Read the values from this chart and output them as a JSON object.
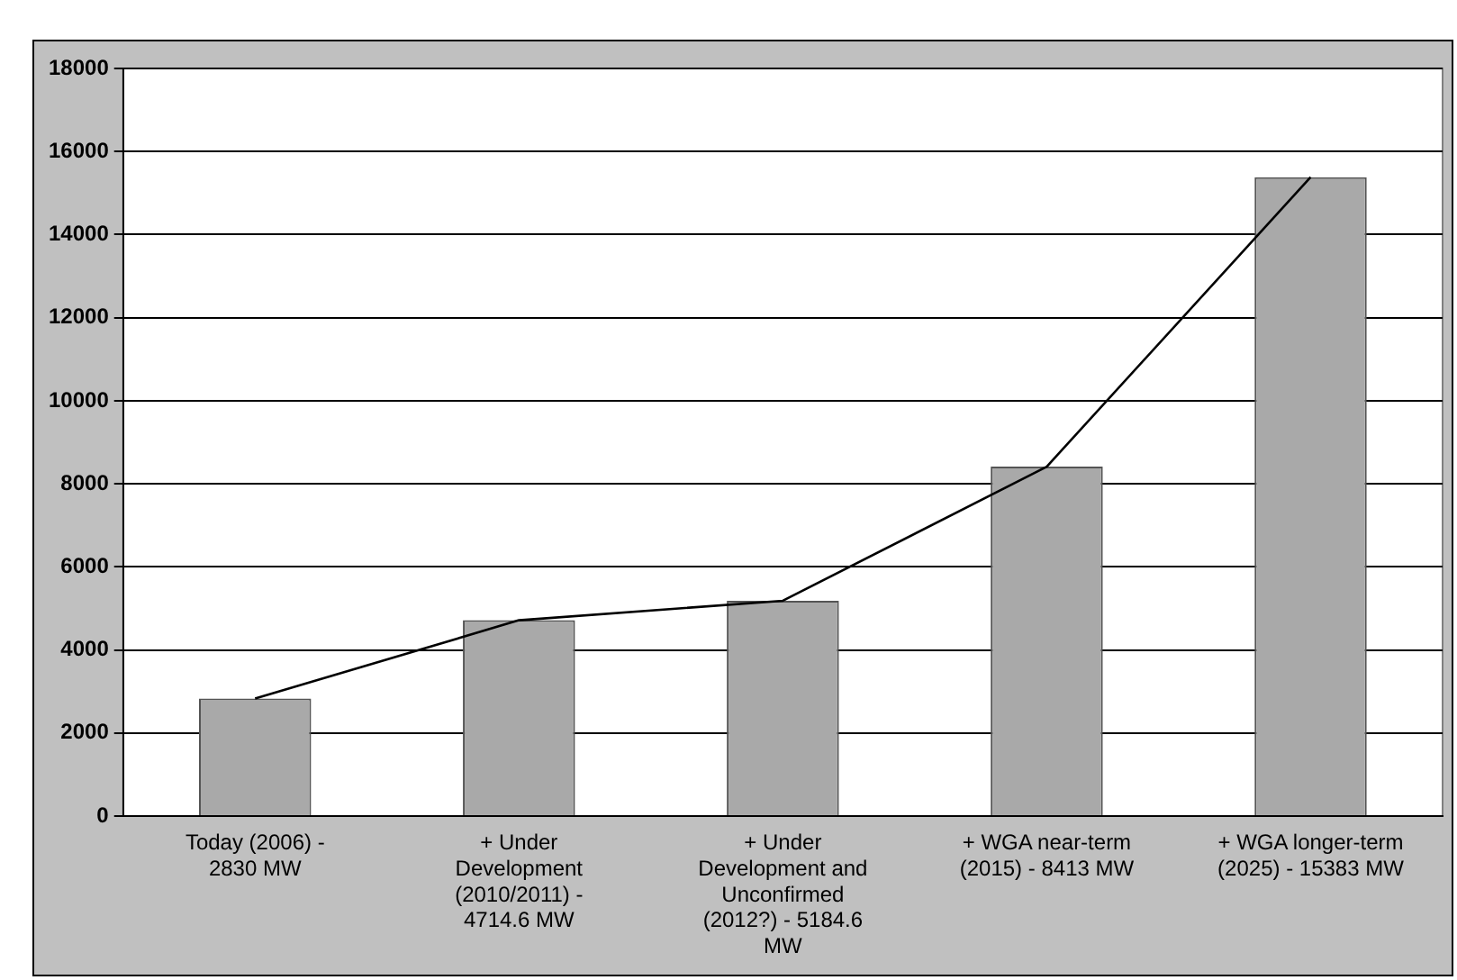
{
  "chart_data": {
    "type": "bar",
    "categories": [
      "Today (2006) - 2830 MW",
      "+ Under Development (2010/2011) - 4714.6 MW",
      "+ Under Development and Unconfirmed (2012?) - 5184.6 MW",
      "+ WGA near-term (2015) - 8413 MW",
      "+ WGA longer-term (2025) - 15383 MW"
    ],
    "series": [
      {
        "color": "#a9a9a9",
        "values": [
          2830,
          4714.6,
          5184.6,
          8413,
          15383
        ]
      },
      {
        "type": "line",
        "color": "#000000",
        "values": [
          2830,
          4714.6,
          5184.6,
          8413,
          15383
        ]
      }
    ],
    "ylim": [
      0,
      18000
    ],
    "yticks": [
      0,
      2000,
      4000,
      6000,
      8000,
      10000,
      12000,
      14000,
      16000,
      18000
    ],
    "grid": "y",
    "legend": false,
    "marker": "none"
  }
}
